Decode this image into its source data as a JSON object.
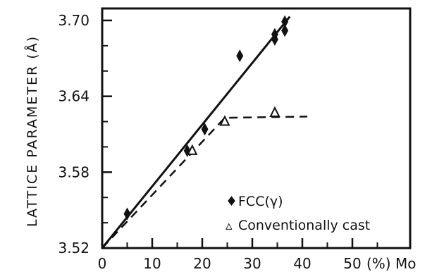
{
  "chart_data": {
    "type": "scatter",
    "title": "",
    "xlabel": "(%) Mo",
    "ylabel": "LATTICE PARAMETER (Å)",
    "xlim": [
      0,
      60
    ],
    "ylim": [
      3.52,
      3.71
    ],
    "x_ticks": [
      0,
      10,
      20,
      30,
      40,
      50
    ],
    "x_tick_labels": [
      "0",
      "10",
      "20",
      "30",
      "40",
      "50"
    ],
    "y_ticks": [
      3.52,
      3.58,
      3.64,
      3.7
    ],
    "y_tick_labels": [
      "3.52",
      "3.58",
      "3.64",
      "3.70"
    ],
    "grid": false,
    "legend_position": "bottom-right",
    "series": [
      {
        "name": "FCC (γ)",
        "marker": "diamond",
        "points": [
          {
            "x": 5,
            "y": 3.547
          },
          {
            "x": 17,
            "y": 3.597
          },
          {
            "x": 20.5,
            "y": 3.614
          },
          {
            "x": 27.5,
            "y": 3.672
          },
          {
            "x": 34.5,
            "y": 3.685
          },
          {
            "x": 34.5,
            "y": 3.689
          },
          {
            "x": 36.5,
            "y": 3.692
          },
          {
            "x": 36.5,
            "y": 3.699
          }
        ],
        "fit_line": {
          "style": "solid",
          "from": {
            "x": 0,
            "y": 3.52
          },
          "to": {
            "x": 37.5,
            "y": 3.703
          }
        }
      },
      {
        "name": "Conventionally cast",
        "marker": "triangle",
        "points": [
          {
            "x": 18,
            "y": 3.597
          },
          {
            "x": 24.5,
            "y": 3.62
          },
          {
            "x": 34.5,
            "y": 3.627
          }
        ],
        "fit_line": {
          "style": "dashed",
          "points": [
            {
              "x": 0,
              "y": 3.52
            },
            {
              "x": 24.5,
              "y": 3.623
            },
            {
              "x": 41,
              "y": 3.624
            }
          ]
        }
      }
    ],
    "legend": {
      "entries": [
        {
          "symbol": "♦",
          "label": "FCC(γ)"
        },
        {
          "symbol": "▵",
          "label": "Conventionally cast"
        }
      ]
    }
  }
}
